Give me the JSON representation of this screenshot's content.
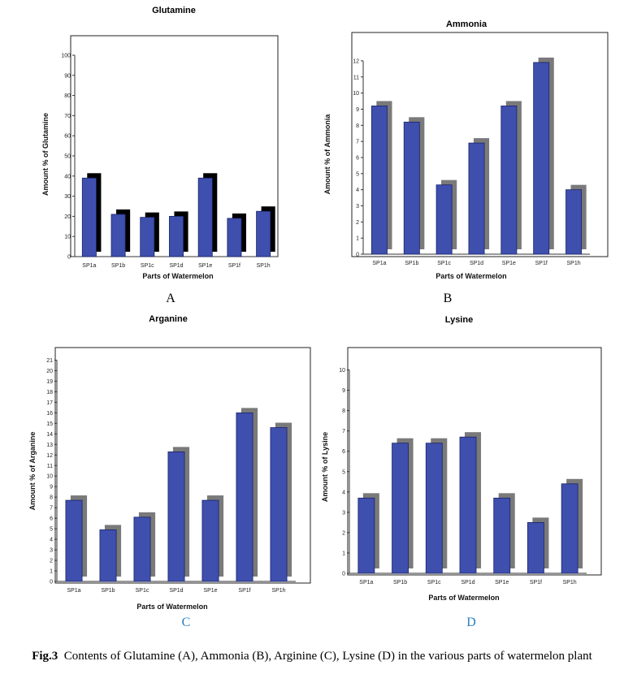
{
  "figure": {
    "caption_label": "Fig.3",
    "caption_text": "Contents of Glutamine (A), Ammonia (B), Arginine (C), Lysine (D) in the various parts of watermelon plant"
  },
  "colors": {
    "bar": "#3f4fae",
    "bar_edge": "#1a2466",
    "shadow_black": "#000000",
    "shadow_gray": "#7a7a7a",
    "panel_letter_ac": "#000000",
    "panel_letter_cd": "#2a7fc0"
  },
  "chart_data": [
    {
      "panel": "A",
      "type": "bar",
      "title": "Glutamine",
      "xlabel": "Parts of Watermelon",
      "ylabel": "Amount % of Glutamine",
      "categories": [
        "SP1a",
        "SP1b",
        "SP1c",
        "SP1d",
        "SP1e",
        "SP1f",
        "SP1h"
      ],
      "values": [
        39,
        21,
        19.5,
        20,
        39,
        19,
        22.5
      ],
      "ylim": [
        0,
        100
      ],
      "yticks": [
        0,
        10,
        20,
        30,
        40,
        50,
        60,
        70,
        80,
        90,
        100
      ],
      "shadow": "black",
      "grid": false
    },
    {
      "panel": "B",
      "type": "bar",
      "title": "Ammonia",
      "xlabel": "Parts of Watermelon",
      "ylabel": "Amount % of Ammonia",
      "categories": [
        "SP1a",
        "SP1b",
        "SP1c",
        "SP1d",
        "SP1e",
        "SP1f",
        "SP1h"
      ],
      "values": [
        9.2,
        8.2,
        4.3,
        6.9,
        9.2,
        11.9,
        4.0
      ],
      "ylim": [
        0,
        12.5
      ],
      "yticks": [
        0,
        1,
        2,
        3,
        4,
        5,
        6,
        7,
        8,
        9,
        10,
        11,
        12
      ],
      "shadow": "gray",
      "grid": false
    },
    {
      "panel": "C",
      "type": "bar",
      "title": "Arganine",
      "xlabel": "Parts of Watermelon",
      "ylabel": "Amount % of Arganine",
      "categories": [
        "SP1a",
        "SP1b",
        "SP1c",
        "SP1d",
        "SP1e",
        "SP1f",
        "SP1h"
      ],
      "values": [
        7.7,
        4.9,
        6.1,
        12.3,
        7.7,
        16.0,
        14.6
      ],
      "ylim": [
        0,
        21.5
      ],
      "yticks": [
        0,
        1,
        2,
        3,
        4,
        5,
        6,
        7,
        8,
        9,
        10,
        11,
        12,
        13,
        14,
        15,
        16,
        17,
        18,
        19,
        20,
        21
      ],
      "shadow": "gray",
      "grid": false
    },
    {
      "panel": "D",
      "type": "bar",
      "title": "Lysine",
      "xlabel": "Parts of Watermelon",
      "ylabel": "Amount % of Lysine",
      "categories": [
        "SP1a",
        "SP1b",
        "SP1c",
        "SP1d",
        "SP1e",
        "SP1f",
        "SP1h"
      ],
      "values": [
        3.7,
        6.4,
        6.4,
        6.7,
        3.7,
        2.5,
        4.4
      ],
      "ylim": [
        0,
        10.5
      ],
      "yticks": [
        0,
        1,
        2,
        3,
        4,
        5,
        6,
        7,
        8,
        9,
        10
      ],
      "shadow": "gray",
      "grid": false
    }
  ]
}
